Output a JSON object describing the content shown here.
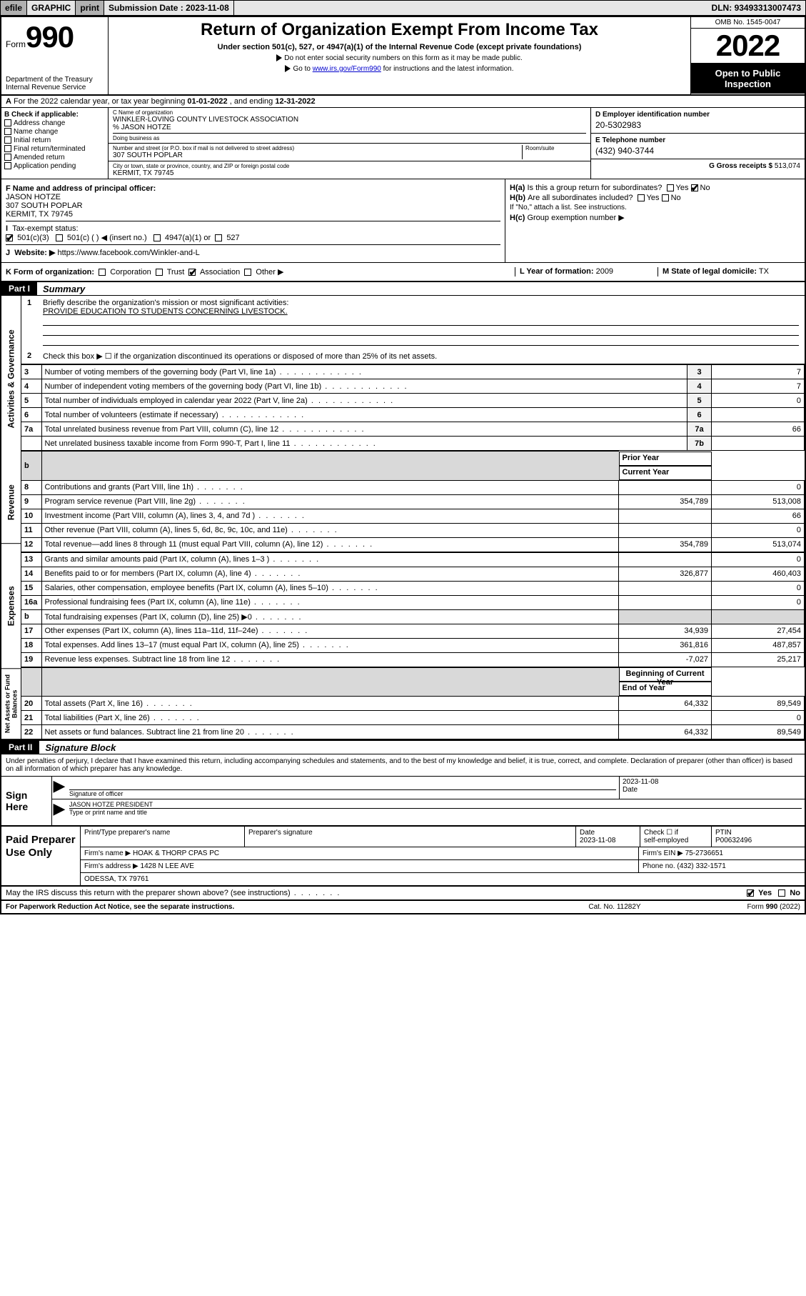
{
  "efile": {
    "efile": "efile",
    "graphic": "GRAPHIC",
    "print": "print",
    "sub_label": "Submission Date :",
    "sub_date": "2023-11-08",
    "dln_label": "DLN:",
    "dln": "93493313007473"
  },
  "hdr": {
    "form_word": "Form",
    "form_num": "990",
    "title": "Return of Organization Exempt From Income Tax",
    "sub1": "Under section 501(c), 527, or 4947(a)(1) of the Internal Revenue Code (except private foundations)",
    "sub2": "Do not enter social security numbers on this form as it may be made public.",
    "sub3_pre": "Go to ",
    "sub3_link": "www.irs.gov/Form990",
    "sub3_post": " for instructions and the latest information.",
    "dept": "Department of the Treasury\nInternal Revenue Service",
    "omb": "OMB No. 1545-0047",
    "year": "2022",
    "openpub": "Open to Public Inspection"
  },
  "A": {
    "text_pre": "For the 2022 calendar year, or tax year beginning ",
    "begin": "01-01-2022",
    "mid": " , and ending ",
    "end": "12-31-2022"
  },
  "B": {
    "label": "B Check if applicable:",
    "addr": "Address change",
    "name": "Name change",
    "init": "Initial return",
    "final": "Final return/terminated",
    "amend": "Amended return",
    "app": "Application pending"
  },
  "C": {
    "name_lab": "C Name of organization",
    "name": "WINKLER-LOVING COUNTY LIVESTOCK ASSOCIATION",
    "care_lab": "% ",
    "care": "JASON HOTZE",
    "dba_lab": "Doing business as",
    "street_lab": "Number and street (or P.O. box if mail is not delivered to street address)",
    "street": "307 SOUTH POPLAR",
    "room_lab": "Room/suite",
    "city_lab": "City or town, state or province, country, and ZIP or foreign postal code",
    "city": "KERMIT, TX  79745"
  },
  "D": {
    "lab": "D Employer identification number",
    "val": "20-5302983"
  },
  "E": {
    "lab": "E Telephone number",
    "val": "(432) 940-3744"
  },
  "G": {
    "lab": "G Gross receipts $",
    "val": "513,074"
  },
  "F": {
    "lab": "F Name and address of principal officer:",
    "name": "JASON HOTZE",
    "street": "307 SOUTH POPLAR",
    "city": "KERMIT, TX  79745"
  },
  "I": {
    "lab": "Tax-exempt status:",
    "o1": "501(c)(3)",
    "o2": "501(c) (   ) ◀ (insert no.)",
    "o3": "4947(a)(1) or",
    "o4": "527"
  },
  "J": {
    "lab": "Website: ▶",
    "val": "https://www.facebook.com/Winkler-and-L"
  },
  "H": {
    "a_lab": "H(a)",
    "a_txt": "Is this a group return for subordinates?",
    "b_lab": "H(b)",
    "b_txt": "Are all subordinates included?",
    "b_note": "If \"No,\" attach a list. See instructions.",
    "c_lab": "H(c)",
    "c_txt": "Group exemption number ▶",
    "yes": "Yes",
    "no": "No"
  },
  "K": {
    "lab": "K Form of organization:",
    "corp": "Corporation",
    "trust": "Trust",
    "assoc": "Association",
    "other": "Other ▶"
  },
  "L": {
    "lab": "L Year of formation:",
    "val": "2009"
  },
  "M": {
    "lab": "M State of legal domicile:",
    "val": "TX"
  },
  "part1": {
    "tag": "Part I",
    "title": "Summary",
    "l1_num": "1",
    "l1": "Briefly describe the organization's mission or most significant activities:",
    "mission": "PROVIDE EDUCATION TO STUDENTS CONCERNING LIVESTOCK.",
    "l2_num": "2",
    "l2": "Check this box ▶ ☐ if the organization discontinued its operations or disposed of more than 25% of its net assets.",
    "rows_gov": [
      {
        "n": "3",
        "d": "Number of voting members of the governing body (Part VI, line 1a)",
        "box": "3",
        "v": "7"
      },
      {
        "n": "4",
        "d": "Number of independent voting members of the governing body (Part VI, line 1b)",
        "box": "4",
        "v": "7"
      },
      {
        "n": "5",
        "d": "Total number of individuals employed in calendar year 2022 (Part V, line 2a)",
        "box": "5",
        "v": "0"
      },
      {
        "n": "6",
        "d": "Total number of volunteers (estimate if necessary)",
        "box": "6",
        "v": ""
      },
      {
        "n": "7a",
        "d": "Total unrelated business revenue from Part VIII, column (C), line 12",
        "box": "7a",
        "v": "66"
      },
      {
        "n": "",
        "d": "Net unrelated business taxable income from Form 990-T, Part I, line 11",
        "box": "7b",
        "v": ""
      }
    ],
    "hdr_b": "b",
    "hdr_prior": "Prior Year",
    "hdr_curr": "Current Year",
    "rows_rev": [
      {
        "n": "8",
        "d": "Contributions and grants (Part VIII, line 1h)",
        "p": "",
        "c": "0"
      },
      {
        "n": "9",
        "d": "Program service revenue (Part VIII, line 2g)",
        "p": "354,789",
        "c": "513,008"
      },
      {
        "n": "10",
        "d": "Investment income (Part VIII, column (A), lines 3, 4, and 7d )",
        "p": "",
        "c": "66"
      },
      {
        "n": "11",
        "d": "Other revenue (Part VIII, column (A), lines 5, 6d, 8c, 9c, 10c, and 11e)",
        "p": "",
        "c": "0"
      },
      {
        "n": "12",
        "d": "Total revenue—add lines 8 through 11 (must equal Part VIII, column (A), line 12)",
        "p": "354,789",
        "c": "513,074"
      }
    ],
    "rows_exp": [
      {
        "n": "13",
        "d": "Grants and similar amounts paid (Part IX, column (A), lines 1–3 )",
        "p": "",
        "c": "0"
      },
      {
        "n": "14",
        "d": "Benefits paid to or for members (Part IX, column (A), line 4)",
        "p": "326,877",
        "c": "460,403"
      },
      {
        "n": "15",
        "d": "Salaries, other compensation, employee benefits (Part IX, column (A), lines 5–10)",
        "p": "",
        "c": "0"
      },
      {
        "n": "16a",
        "d": "Professional fundraising fees (Part IX, column (A), line 11e)",
        "p": "",
        "c": "0"
      },
      {
        "n": "b",
        "d": "Total fundraising expenses (Part IX, column (D), line 25) ▶0",
        "p": "shade",
        "c": "shade"
      },
      {
        "n": "17",
        "d": "Other expenses (Part IX, column (A), lines 11a–11d, 11f–24e)",
        "p": "34,939",
        "c": "27,454"
      },
      {
        "n": "18",
        "d": "Total expenses. Add lines 13–17 (must equal Part IX, column (A), line 25)",
        "p": "361,816",
        "c": "487,857"
      },
      {
        "n": "19",
        "d": "Revenue less expenses. Subtract line 18 from line 12",
        "p": "-7,027",
        "c": "25,217"
      }
    ],
    "hdr_begin": "Beginning of Current Year",
    "hdr_end": "End of Year",
    "rows_net": [
      {
        "n": "20",
        "d": "Total assets (Part X, line 16)",
        "p": "64,332",
        "c": "89,549"
      },
      {
        "n": "21",
        "d": "Total liabilities (Part X, line 26)",
        "p": "",
        "c": "0"
      },
      {
        "n": "22",
        "d": "Net assets or fund balances. Subtract line 21 from line 20",
        "p": "64,332",
        "c": "89,549"
      }
    ],
    "vtabs": [
      "Activities & Governance",
      "Revenue",
      "Expenses",
      "Net Assets or Fund Balances"
    ]
  },
  "part2": {
    "tag": "Part II",
    "title": "Signature Block",
    "perjury": "Under penalties of perjury, I declare that I have examined this return, including accompanying schedules and statements, and to the best of my knowledge and belief, it is true, correct, and complete. Declaration of preparer (other than officer) is based on all information of which preparer has any knowledge."
  },
  "sign": {
    "here": "Sign Here",
    "sig_lab": "Signature of officer",
    "date_lab": "Date",
    "date": "2023-11-08",
    "name": "JASON HOTZE PRESIDENT",
    "name_lab": "Type or print name and title"
  },
  "prep": {
    "here": "Paid Preparer Use Only",
    "c1": "Print/Type preparer's name",
    "c2": "Preparer's signature",
    "c3": "Date",
    "c3v": "2023-11-08",
    "c4a": "Check ☐ if",
    "c4b": "self-employed",
    "c5": "PTIN",
    "c5v": "P00632496",
    "firm_lab": "Firm's name  ▶",
    "firm": "HOAK & THORP CPAS PC",
    "ein_lab": "Firm's EIN ▶",
    "ein": "75-2736651",
    "addr_lab": "Firm's address ▶",
    "addr1": "1428 N LEE AVE",
    "addr2": "ODESSA, TX  79761",
    "phone_lab": "Phone no.",
    "phone": "(432) 332-1571"
  },
  "discuss": {
    "q": "May the IRS discuss this return with the preparer shown above? (see instructions)",
    "yes": "Yes",
    "no": "No"
  },
  "footer": {
    "l": "For Paperwork Reduction Act Notice, see the separate instructions.",
    "c": "Cat. No. 11282Y",
    "r": "Form 990 (2022)"
  }
}
